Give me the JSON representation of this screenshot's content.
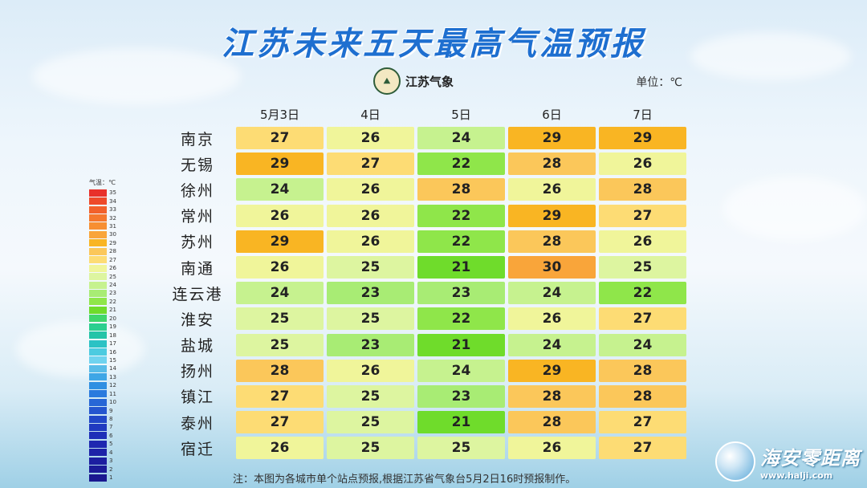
{
  "title": "江苏未来五天最高气温预报",
  "logo_text": "江苏气象",
  "unit_label": "单位：℃",
  "legend_title": "气温：℃",
  "note": "注：本图为各城市单个站点预报,根据江苏省气象台5月2日16时预报制作。",
  "brand": {
    "name": "海安零距离",
    "url": "www.halji.com"
  },
  "chart_data": {
    "type": "table",
    "title": "江苏未来五天最高气温预报",
    "unit": "℃",
    "columns": [
      "5月3日",
      "4日",
      "5日",
      "6日",
      "7日"
    ],
    "rows": [
      {
        "city": "南京",
        "values": [
          27,
          26,
          24,
          29,
          29
        ]
      },
      {
        "city": "无锡",
        "values": [
          29,
          27,
          22,
          28,
          26
        ]
      },
      {
        "city": "徐州",
        "values": [
          24,
          26,
          28,
          26,
          28
        ]
      },
      {
        "city": "常州",
        "values": [
          26,
          26,
          22,
          29,
          27
        ]
      },
      {
        "city": "苏州",
        "values": [
          29,
          26,
          22,
          28,
          26
        ]
      },
      {
        "city": "南通",
        "values": [
          26,
          25,
          21,
          30,
          25
        ]
      },
      {
        "city": "连云港",
        "values": [
          24,
          23,
          23,
          24,
          22
        ]
      },
      {
        "city": "淮安",
        "values": [
          25,
          25,
          22,
          26,
          27
        ]
      },
      {
        "city": "盐城",
        "values": [
          25,
          23,
          21,
          24,
          24
        ]
      },
      {
        "city": "扬州",
        "values": [
          28,
          26,
          24,
          29,
          28
        ]
      },
      {
        "city": "镇江",
        "values": [
          27,
          25,
          23,
          28,
          28
        ]
      },
      {
        "city": "泰州",
        "values": [
          27,
          25,
          21,
          28,
          27
        ]
      },
      {
        "city": "宿迁",
        "values": [
          26,
          25,
          25,
          26,
          27
        ]
      }
    ],
    "legend": {
      "labels": [
        "35",
        "34",
        "33",
        "32",
        "31",
        "30",
        "29",
        "28",
        "27",
        "26",
        "25",
        "24",
        "23",
        "22",
        "21",
        "20",
        "19",
        "18",
        "17",
        "16",
        "15",
        "14",
        "13",
        "12",
        "11",
        "10",
        "9",
        "8",
        "7",
        "6",
        "5",
        "4",
        "3",
        "2",
        "1"
      ],
      "colors": [
        "#e8302a",
        "#ee4a2a",
        "#f2612b",
        "#f5782e",
        "#f78f32",
        "#f9a53a",
        "#f9b523",
        "#fbc75a",
        "#fddc74",
        "#f0f59a",
        "#ddf5a0",
        "#c6f28f",
        "#a8ec74",
        "#8fe64a",
        "#6fdc2b",
        "#3fd66b",
        "#2ccf8f",
        "#25c4a8",
        "#2cc2c4",
        "#4ccbe0",
        "#6fd3ef",
        "#58bce8",
        "#3ea6e6",
        "#2f8fe2",
        "#2a7ade",
        "#2767d6",
        "#2456cf",
        "#2148c8",
        "#1f3ac0",
        "#1e2fb8",
        "#1e27b0",
        "#1d22a8",
        "#1c1ea0",
        "#1b1b98",
        "#1a1890"
      ]
    }
  }
}
